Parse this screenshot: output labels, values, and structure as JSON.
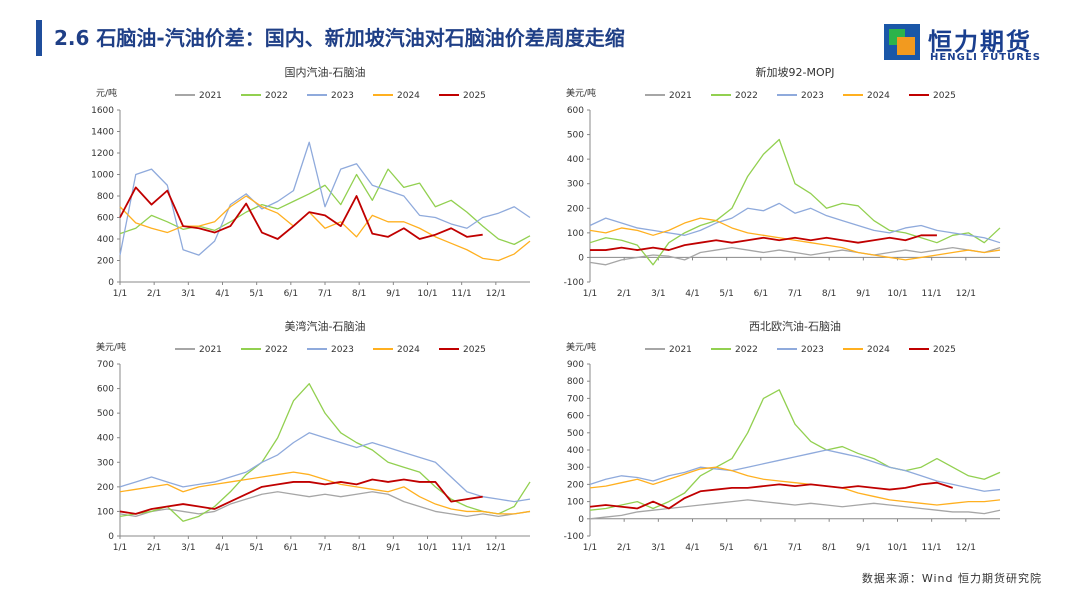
{
  "header": {
    "title": "2.6 石脑油-汽油价差：国内、新加坡汽油对石脑油价差周度走缩",
    "logo_cn": "恒力期货",
    "logo_en": "HENGLI FUTURES"
  },
  "footer": {
    "source": "数据来源：Wind 恒力期货研究院"
  },
  "colors": {
    "2021": "#a6a6a6",
    "2022": "#92d050",
    "2023": "#8faadc",
    "2024": "#ffb020",
    "2025": "#c00000",
    "title": "#1f3f86"
  },
  "chart_data": [
    {
      "type": "line",
      "title": "国内汽油-石脑油",
      "ylabel": "元/吨",
      "ylim": [
        0,
        1600
      ],
      "yticks": [
        0,
        200,
        400,
        600,
        800,
        1000,
        1200,
        1400,
        1600
      ],
      "xticks": [
        "1/1",
        "2/1",
        "3/1",
        "4/1",
        "5/1",
        "6/1",
        "7/1",
        "8/1",
        "9/1",
        "10/1",
        "11/1",
        "12/1"
      ],
      "legend": [
        "2021",
        "2022",
        "2023",
        "2024",
        "2025"
      ],
      "x_weeks": [
        0,
        2,
        4,
        6,
        8,
        10,
        12,
        14,
        16,
        18,
        20,
        22,
        24,
        26,
        28,
        30,
        32,
        34,
        36,
        38,
        40,
        42,
        44,
        46,
        48,
        50,
        52
      ],
      "series": [
        {
          "name": "2022",
          "values": [
            450,
            500,
            620,
            560,
            490,
            520,
            480,
            560,
            650,
            720,
            680,
            750,
            820,
            900,
            720,
            1000,
            760,
            1050,
            880,
            920,
            700,
            760,
            650,
            520,
            400,
            350,
            430
          ]
        },
        {
          "name": "2023",
          "values": [
            250,
            1000,
            1050,
            900,
            300,
            250,
            380,
            720,
            820,
            680,
            750,
            850,
            1300,
            700,
            1050,
            1100,
            900,
            850,
            800,
            620,
            600,
            540,
            500,
            600,
            640,
            700,
            600
          ]
        },
        {
          "name": "2024",
          "values": [
            700,
            550,
            500,
            460,
            520,
            520,
            560,
            700,
            800,
            700,
            640,
            520,
            650,
            500,
            560,
            420,
            620,
            560,
            560,
            500,
            420,
            360,
            300,
            220,
            200,
            260,
            380
          ]
        },
        {
          "name": "2025",
          "values": [
            600,
            880,
            720,
            850,
            520,
            500,
            460,
            520,
            730,
            460,
            400,
            520,
            650,
            620,
            520,
            800,
            450,
            420,
            500,
            400,
            440,
            500,
            420,
            440
          ]
        }
      ]
    },
    {
      "type": "line",
      "title": "新加坡92-MOPJ",
      "ylabel": "美元/吨",
      "ylim": [
        -100,
        600
      ],
      "yticks": [
        -100,
        0,
        100,
        200,
        300,
        400,
        500,
        600
      ],
      "xticks": [
        "1/1",
        "2/1",
        "3/1",
        "4/1",
        "5/1",
        "6/1",
        "7/1",
        "8/1",
        "9/1",
        "10/1",
        "11/1",
        "12/1"
      ],
      "legend": [
        "2021",
        "2022",
        "2023",
        "2024",
        "2025"
      ],
      "x_weeks": [
        0,
        2,
        4,
        6,
        8,
        10,
        12,
        14,
        16,
        18,
        20,
        22,
        24,
        26,
        28,
        30,
        32,
        34,
        36,
        38,
        40,
        42,
        44,
        46,
        48,
        50,
        52
      ],
      "series": [
        {
          "name": "2021",
          "values": [
            -20,
            -30,
            -10,
            0,
            10,
            5,
            -10,
            20,
            30,
            40,
            30,
            20,
            30,
            20,
            10,
            20,
            30,
            20,
            10,
            20,
            30,
            20,
            30,
            40,
            30,
            20,
            40
          ]
        },
        {
          "name": "2022",
          "values": [
            60,
            80,
            70,
            50,
            -30,
            60,
            100,
            130,
            150,
            200,
            330,
            420,
            480,
            300,
            260,
            200,
            220,
            210,
            150,
            110,
            100,
            80,
            60,
            90,
            100,
            60,
            120
          ]
        },
        {
          "name": "2023",
          "values": [
            130,
            160,
            140,
            120,
            110,
            100,
            90,
            110,
            140,
            160,
            200,
            190,
            220,
            180,
            200,
            170,
            150,
            130,
            110,
            100,
            120,
            130,
            110,
            100,
            90,
            80,
            60
          ]
        },
        {
          "name": "2024",
          "values": [
            110,
            100,
            120,
            110,
            90,
            110,
            140,
            160,
            150,
            120,
            100,
            90,
            80,
            70,
            60,
            50,
            40,
            20,
            10,
            0,
            -10,
            0,
            10,
            20,
            30,
            20,
            30
          ]
        },
        {
          "name": "2025",
          "values": [
            30,
            30,
            40,
            30,
            40,
            30,
            50,
            60,
            70,
            60,
            70,
            80,
            70,
            80,
            70,
            80,
            70,
            60,
            70,
            80,
            70,
            90,
            90
          ]
        }
      ]
    },
    {
      "type": "line",
      "title": "美湾汽油-石脑油",
      "ylabel": "美元/吨",
      "ylim": [
        0,
        700
      ],
      "yticks": [
        0,
        100,
        200,
        300,
        400,
        500,
        600,
        700
      ],
      "xticks": [
        "1/1",
        "2/1",
        "3/1",
        "4/1",
        "5/1",
        "6/1",
        "7/1",
        "8/1",
        "9/1",
        "10/1",
        "11/1",
        "12/1"
      ],
      "legend": [
        "2021",
        "2022",
        "2023",
        "2024",
        "2025"
      ],
      "x_weeks": [
        0,
        2,
        4,
        6,
        8,
        10,
        12,
        14,
        16,
        18,
        20,
        22,
        24,
        26,
        28,
        30,
        32,
        34,
        36,
        38,
        40,
        42,
        44,
        46,
        48,
        50,
        52
      ],
      "series": [
        {
          "name": "2021",
          "values": [
            90,
            80,
            100,
            110,
            100,
            90,
            100,
            130,
            150,
            170,
            180,
            170,
            160,
            170,
            160,
            170,
            180,
            170,
            140,
            120,
            100,
            90,
            80,
            90,
            80,
            90,
            100
          ]
        },
        {
          "name": "2022",
          "values": [
            80,
            90,
            100,
            120,
            60,
            80,
            120,
            180,
            250,
            300,
            400,
            550,
            620,
            500,
            420,
            380,
            350,
            300,
            280,
            260,
            200,
            150,
            120,
            100,
            90,
            120,
            220
          ]
        },
        {
          "name": "2023",
          "values": [
            200,
            220,
            240,
            220,
            200,
            210,
            220,
            240,
            260,
            300,
            330,
            380,
            420,
            400,
            380,
            360,
            380,
            360,
            340,
            320,
            300,
            240,
            180,
            160,
            150,
            140,
            150
          ]
        },
        {
          "name": "2024",
          "values": [
            180,
            190,
            200,
            210,
            180,
            200,
            210,
            220,
            230,
            240,
            250,
            260,
            250,
            230,
            210,
            200,
            190,
            180,
            200,
            160,
            130,
            110,
            100,
            100,
            90,
            90,
            100
          ]
        },
        {
          "name": "2025",
          "values": [
            100,
            90,
            110,
            120,
            130,
            120,
            110,
            140,
            170,
            200,
            210,
            220,
            220,
            210,
            220,
            210,
            230,
            220,
            230,
            220,
            220,
            140,
            150,
            160
          ]
        }
      ]
    },
    {
      "type": "line",
      "title": "西北欧汽油-石脑油",
      "ylabel": "美元/吨",
      "ylim": [
        -100,
        900
      ],
      "yticks": [
        -100,
        0,
        100,
        200,
        300,
        400,
        500,
        600,
        700,
        800,
        900
      ],
      "xticks": [
        "1/1",
        "2/1",
        "3/1",
        "4/1",
        "5/1",
        "6/1",
        "7/1",
        "8/1",
        "9/1",
        "10/1",
        "11/1",
        "12/1"
      ],
      "legend": [
        "2021",
        "2022",
        "2023",
        "2024",
        "2025"
      ],
      "x_weeks": [
        0,
        2,
        4,
        6,
        8,
        10,
        12,
        14,
        16,
        18,
        20,
        22,
        24,
        26,
        28,
        30,
        32,
        34,
        36,
        38,
        40,
        42,
        44,
        46,
        48,
        50,
        52
      ],
      "series": [
        {
          "name": "2021",
          "values": [
            0,
            10,
            20,
            40,
            50,
            60,
            70,
            80,
            90,
            100,
            110,
            100,
            90,
            80,
            90,
            80,
            70,
            80,
            90,
            80,
            70,
            60,
            50,
            40,
            40,
            30,
            50
          ]
        },
        {
          "name": "2022",
          "values": [
            50,
            60,
            80,
            100,
            60,
            100,
            150,
            250,
            300,
            350,
            500,
            700,
            750,
            550,
            450,
            400,
            420,
            380,
            350,
            300,
            280,
            300,
            350,
            300,
            250,
            230,
            270
          ]
        },
        {
          "name": "2023",
          "values": [
            200,
            230,
            250,
            240,
            220,
            250,
            270,
            300,
            290,
            280,
            300,
            320,
            340,
            360,
            380,
            400,
            380,
            360,
            330,
            300,
            280,
            250,
            220,
            200,
            180,
            160,
            170
          ]
        },
        {
          "name": "2024",
          "values": [
            180,
            190,
            210,
            230,
            200,
            230,
            260,
            290,
            300,
            280,
            250,
            230,
            220,
            210,
            200,
            190,
            180,
            150,
            130,
            110,
            100,
            90,
            80,
            90,
            100,
            100,
            110
          ]
        },
        {
          "name": "2025",
          "values": [
            70,
            80,
            70,
            60,
            100,
            60,
            120,
            160,
            170,
            180,
            180,
            190,
            200,
            190,
            200,
            190,
            180,
            190,
            180,
            170,
            180,
            200,
            210,
            180
          ]
        }
      ]
    }
  ]
}
